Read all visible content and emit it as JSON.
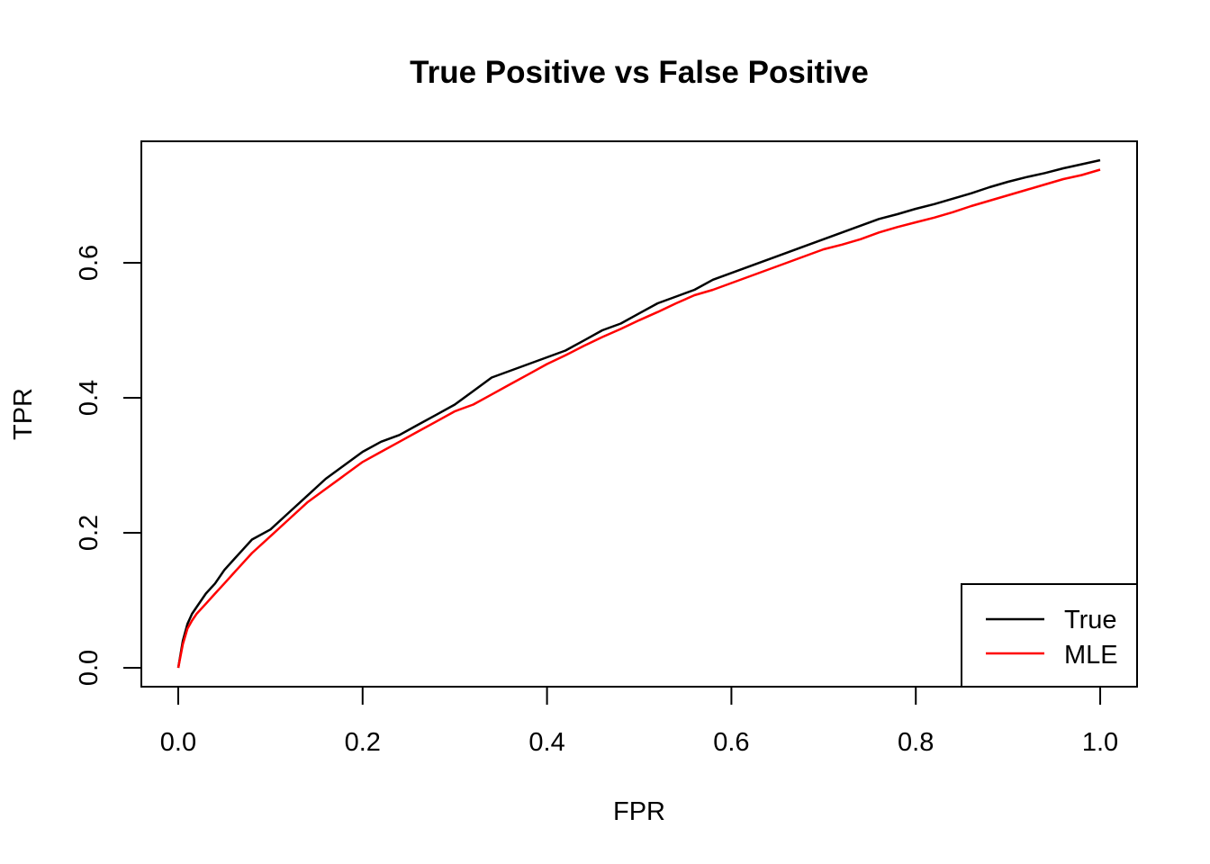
{
  "chart_data": {
    "type": "line",
    "title": "True Positive vs False Positive",
    "xlabel": "FPR",
    "ylabel": "TPR",
    "xlim": [
      -0.04,
      1.04
    ],
    "ylim": [
      -0.028,
      0.78
    ],
    "xticks": [
      0.0,
      0.2,
      0.4,
      0.6,
      0.8,
      1.0
    ],
    "xtick_labels": [
      "0.0",
      "0.2",
      "0.4",
      "0.6",
      "0.8",
      "1.0"
    ],
    "yticks": [
      0.0,
      0.2,
      0.4,
      0.6
    ],
    "ytick_labels": [
      "0.0",
      "0.2",
      "0.4",
      "0.6"
    ],
    "grid": false,
    "legend": {
      "position": "bottom-right",
      "entries": [
        "True",
        "MLE"
      ]
    },
    "series": [
      {
        "name": "True",
        "color": "#000000",
        "x": [
          0.0,
          0.005,
          0.01,
          0.015,
          0.02,
          0.03,
          0.04,
          0.05,
          0.06,
          0.07,
          0.08,
          0.1,
          0.12,
          0.14,
          0.16,
          0.18,
          0.2,
          0.22,
          0.24,
          0.26,
          0.28,
          0.3,
          0.32,
          0.34,
          0.36,
          0.38,
          0.4,
          0.42,
          0.44,
          0.46,
          0.48,
          0.5,
          0.52,
          0.54,
          0.56,
          0.58,
          0.6,
          0.62,
          0.64,
          0.66,
          0.68,
          0.7,
          0.72,
          0.74,
          0.76,
          0.78,
          0.8,
          0.82,
          0.84,
          0.86,
          0.88,
          0.9,
          0.92,
          0.94,
          0.96,
          0.98,
          1.0
        ],
        "y": [
          0.0,
          0.04,
          0.065,
          0.08,
          0.09,
          0.11,
          0.125,
          0.145,
          0.16,
          0.175,
          0.19,
          0.205,
          0.23,
          0.255,
          0.28,
          0.3,
          0.32,
          0.335,
          0.345,
          0.36,
          0.375,
          0.39,
          0.41,
          0.43,
          0.44,
          0.45,
          0.46,
          0.47,
          0.485,
          0.5,
          0.51,
          0.525,
          0.54,
          0.55,
          0.56,
          0.575,
          0.585,
          0.595,
          0.605,
          0.615,
          0.625,
          0.635,
          0.645,
          0.655,
          0.665,
          0.672,
          0.68,
          0.687,
          0.695,
          0.703,
          0.712,
          0.72,
          0.727,
          0.733,
          0.74,
          0.746,
          0.752
        ]
      },
      {
        "name": "MLE",
        "color": "#ff0000",
        "x": [
          0.0,
          0.005,
          0.01,
          0.015,
          0.02,
          0.03,
          0.04,
          0.05,
          0.06,
          0.07,
          0.08,
          0.1,
          0.12,
          0.14,
          0.16,
          0.18,
          0.2,
          0.22,
          0.24,
          0.26,
          0.28,
          0.3,
          0.32,
          0.34,
          0.36,
          0.38,
          0.4,
          0.42,
          0.44,
          0.46,
          0.48,
          0.5,
          0.52,
          0.54,
          0.56,
          0.58,
          0.6,
          0.62,
          0.64,
          0.66,
          0.68,
          0.7,
          0.72,
          0.74,
          0.76,
          0.78,
          0.8,
          0.82,
          0.84,
          0.86,
          0.88,
          0.9,
          0.92,
          0.94,
          0.96,
          0.98,
          1.0
        ],
        "y": [
          0.0,
          0.035,
          0.058,
          0.07,
          0.08,
          0.095,
          0.11,
          0.125,
          0.14,
          0.155,
          0.17,
          0.195,
          0.22,
          0.245,
          0.265,
          0.285,
          0.305,
          0.32,
          0.335,
          0.35,
          0.365,
          0.38,
          0.39,
          0.405,
          0.42,
          0.435,
          0.45,
          0.463,
          0.477,
          0.49,
          0.502,
          0.515,
          0.527,
          0.54,
          0.552,
          0.56,
          0.57,
          0.58,
          0.59,
          0.6,
          0.61,
          0.62,
          0.627,
          0.635,
          0.645,
          0.653,
          0.66,
          0.667,
          0.675,
          0.684,
          0.692,
          0.7,
          0.708,
          0.716,
          0.724,
          0.73,
          0.738
        ]
      }
    ]
  }
}
